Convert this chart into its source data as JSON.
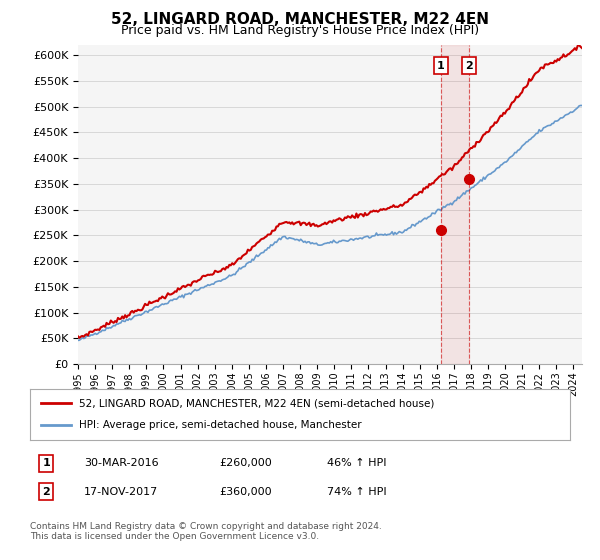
{
  "title": "52, LINGARD ROAD, MANCHESTER, M22 4EN",
  "subtitle": "Price paid vs. HM Land Registry's House Price Index (HPI)",
  "legend_line1": "52, LINGARD ROAD, MANCHESTER, M22 4EN (semi-detached house)",
  "legend_line2": "HPI: Average price, semi-detached house, Manchester",
  "annotation1_date": "30-MAR-2016",
  "annotation1_price": 260000,
  "annotation1_hpi": "46% ↑ HPI",
  "annotation2_date": "17-NOV-2017",
  "annotation2_price": 360000,
  "annotation2_hpi": "74% ↑ HPI",
  "footer": "Contains HM Land Registry data © Crown copyright and database right 2024.\nThis data is licensed under the Open Government Licence v3.0.",
  "price_color": "#cc0000",
  "hpi_color": "#6699cc",
  "background_color": "#ffffff",
  "ylim_max": 620000,
  "ylim_min": 0,
  "trans1_year": 2016.25,
  "trans2_year": 2017.9
}
